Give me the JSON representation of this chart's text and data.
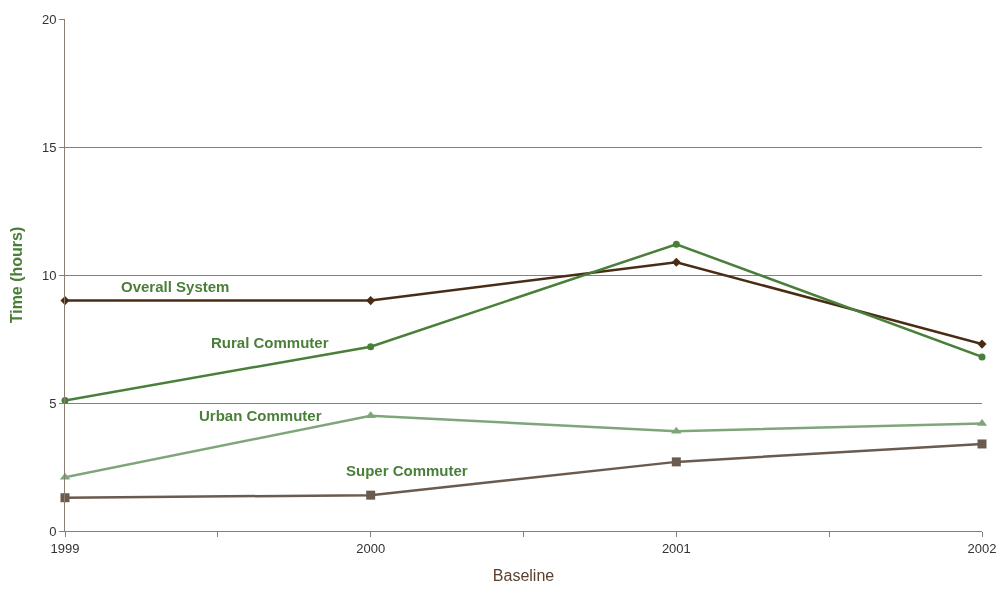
{
  "chart_data": {
    "type": "line",
    "xlabel": "Baseline",
    "ylabel": "Time (hours)",
    "x": [
      1999,
      2000,
      2001,
      2002
    ],
    "xlim": [
      1999,
      2002
    ],
    "xticks": [
      1999,
      {
        "value": 1999.5,
        "label": null
      },
      2000,
      {
        "value": 2000.5,
        "label": null
      },
      2001,
      {
        "value": 2001.5,
        "label": null
      },
      2002
    ],
    "ylim": [
      0,
      20
    ],
    "yticks": [
      0,
      5,
      10,
      15,
      20
    ],
    "grid": "y",
    "legend": false,
    "series": [
      {
        "name": "Overall System",
        "color": "#4a2c14",
        "marker": "diamond",
        "values": [
          9.0,
          9.0,
          10.5,
          7.3
        ]
      },
      {
        "name": "Rural Commuter",
        "color": "#4a7f3a",
        "marker": "circle",
        "values": [
          5.1,
          7.2,
          11.2,
          6.8
        ]
      },
      {
        "name": "Urban Commuter",
        "color": "#7fa67a",
        "marker": "triangle",
        "values": [
          2.1,
          4.5,
          3.9,
          4.2
        ]
      },
      {
        "name": "Super Commuter",
        "color": "#6b5a4e",
        "marker": "square",
        "values": [
          1.3,
          1.4,
          2.7,
          3.4
        ]
      }
    ]
  }
}
